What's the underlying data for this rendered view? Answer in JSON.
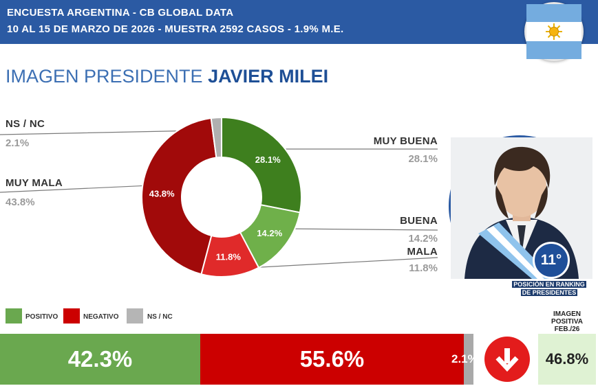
{
  "header": {
    "line1": "ENCUESTA ARGENTINA - CB GLOBAL DATA",
    "line2": "10 AL 15 DE MARZO DE 2026 - MUESTRA 2592 CASOS - 1.9% M.E."
  },
  "title": {
    "prefix": "IMAGEN PRESIDENTE",
    "name": "JAVIER MILEI"
  },
  "chart_data": [
    {
      "type": "pie",
      "title": "IMAGEN PRESIDENTE JAVIER MILEI",
      "donut": true,
      "categories": [
        "MUY BUENA",
        "BUENA",
        "MALA",
        "MUY MALA",
        "NS / NC"
      ],
      "values": [
        28.1,
        14.2,
        11.8,
        43.8,
        2.1
      ],
      "labels": [
        "28.1%",
        "14.2%",
        "11.8%",
        "43.8%",
        "2.1%"
      ],
      "colors": [
        "#3e7f1e",
        "#6fb04a",
        "#e02a2a",
        "#a10a0a",
        "#b0b0b0"
      ],
      "start_angle_deg": 0,
      "direction": "clockwise"
    },
    {
      "type": "bar",
      "orientation": "horizontal-stacked",
      "categories": [
        "POSITIVO",
        "NEGATIVO",
        "NS / NC"
      ],
      "values": [
        42.3,
        55.6,
        2.1
      ],
      "labels": [
        "42.3%",
        "55.6%",
        "2.1%"
      ],
      "colors": [
        "#6aa84f",
        "#cc0000",
        "#a9a9a9"
      ]
    }
  ],
  "slice_labels": {
    "muy_buena": {
      "label": "MUY BUENA",
      "value": "28.1%"
    },
    "buena": {
      "label": "BUENA",
      "value": "14.2%"
    },
    "mala": {
      "label": "MALA",
      "value": "11.8%"
    },
    "muy_mala": {
      "label": "MUY MALA",
      "value": "43.8%"
    },
    "ns_nc": {
      "label": "NS / NC",
      "value": "2.1%"
    }
  },
  "ranking": {
    "position": "11°",
    "caption_line1": "POSICIÓN EN RANKING",
    "caption_line2": "DE PRESIDENTES"
  },
  "legend": {
    "positive": {
      "label": "POSITIVO",
      "color": "#6aa84f"
    },
    "negative": {
      "label": "NEGATIVO",
      "color": "#cc0000"
    },
    "nsnc": {
      "label": "NS / NC",
      "color": "#b5b5b5"
    }
  },
  "summary_bar": {
    "positive": "42.3%",
    "negative": "55.6%",
    "nsnc": "2.1%"
  },
  "previous": {
    "line1": "IMAGEN",
    "line2": "POSITIVA",
    "line3": "FEB./26",
    "value": "46.8%"
  },
  "trend_icon": "arrow-down-icon",
  "flag_icon": "argentina-flag-icon"
}
